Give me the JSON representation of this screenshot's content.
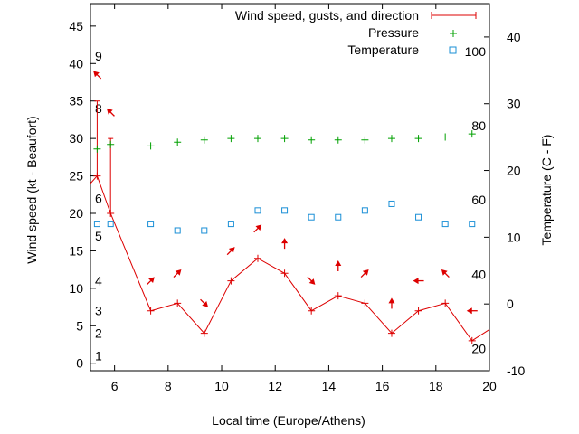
{
  "chart_data": {
    "type": "line",
    "xlabel": "Local time (Europe/Athens)",
    "ylabel": "Wind speed (kt - Beaufort)",
    "y2label": "Temperature (C - F)",
    "xlim": [
      5.1,
      20
    ],
    "ylim": [
      -1,
      48
    ],
    "y2lim": [
      -10,
      45
    ],
    "x_ticks": [
      6,
      8,
      10,
      12,
      14,
      16,
      18,
      20
    ],
    "y_ticks": [
      0,
      5,
      10,
      15,
      20,
      25,
      30,
      35,
      40,
      45
    ],
    "y2_ticks": [
      -10,
      0,
      10,
      20,
      30,
      40
    ],
    "beaufort_labels": [
      {
        "text": "1",
        "kt": 1
      },
      {
        "text": "2",
        "kt": 4
      },
      {
        "text": "3",
        "kt": 7
      },
      {
        "text": "4",
        "kt": 11
      },
      {
        "text": "5",
        "kt": 17
      },
      {
        "text": "6",
        "kt": 22
      },
      {
        "text": "8",
        "kt": 34
      },
      {
        "text": "9",
        "kt": 41
      }
    ],
    "fahrenheit_labels": [
      {
        "text": "20",
        "c": -6.7
      },
      {
        "text": "40",
        "c": 4.4
      },
      {
        "text": "60",
        "c": 15.6
      },
      {
        "text": "80",
        "c": 26.7
      },
      {
        "text": "100",
        "c": 37.8
      }
    ],
    "legend": {
      "position": "top-right",
      "entries": [
        "Wind speed, gusts, and direction",
        "Pressure",
        "Temperature"
      ]
    },
    "colors": {
      "wind": "#dd0000",
      "pressure": "#00a000",
      "temperature": "#1a8fd6",
      "axis": "#000000"
    },
    "series": [
      {
        "name": "Wind speed, gusts, and direction",
        "x": [
          5.1,
          5.35,
          5.85,
          7.35,
          8.35,
          9.35,
          10.35,
          11.35,
          12.35,
          13.35,
          14.35,
          15.35,
          16.35,
          17.35,
          18.35,
          19.35,
          20
        ],
        "values": [
          24,
          25,
          20,
          7,
          8,
          4,
          11,
          14,
          12,
          7,
          9,
          8,
          4,
          7,
          8,
          3,
          4.5
        ]
      },
      {
        "name": "Gusts",
        "x": [
          5.35,
          5.85
        ],
        "low": [
          25,
          20
        ],
        "high": [
          35,
          30
        ]
      },
      {
        "name": "Pressure",
        "x": [
          5.35,
          5.85,
          7.35,
          8.35,
          9.35,
          10.35,
          11.35,
          12.35,
          13.35,
          14.35,
          15.35,
          16.35,
          17.35,
          18.35,
          19.35
        ],
        "values": [
          28.6,
          29.2,
          29.0,
          29.5,
          29.8,
          30.0,
          30.0,
          30.0,
          29.8,
          29.8,
          29.8,
          30.0,
          30.0,
          30.2,
          30.6
        ]
      },
      {
        "name": "Temperature",
        "x": [
          5.35,
          5.85,
          7.35,
          8.35,
          9.35,
          10.35,
          11.35,
          12.35,
          13.35,
          14.35,
          15.35,
          16.35,
          17.35,
          18.35,
          19.35
        ],
        "values": [
          12,
          12,
          12,
          11,
          11,
          12,
          14,
          14,
          13,
          13,
          14,
          15,
          13,
          12,
          12
        ]
      }
    ],
    "wind_arrows": [
      {
        "x": 5.35,
        "kt": 38.5,
        "dir": "up-left"
      },
      {
        "x": 5.85,
        "kt": 33.5,
        "dir": "up-left"
      },
      {
        "x": 7.35,
        "kt": 11,
        "dir": "up-right"
      },
      {
        "x": 8.35,
        "kt": 12,
        "dir": "up-right"
      },
      {
        "x": 9.35,
        "kt": 8,
        "dir": "down-right"
      },
      {
        "x": 10.35,
        "kt": 15,
        "dir": "up-right"
      },
      {
        "x": 11.35,
        "kt": 18,
        "dir": "up-right"
      },
      {
        "x": 12.35,
        "kt": 16,
        "dir": "up"
      },
      {
        "x": 13.35,
        "kt": 11,
        "dir": "down-right"
      },
      {
        "x": 14.35,
        "kt": 13,
        "dir": "up"
      },
      {
        "x": 15.35,
        "kt": 12,
        "dir": "up-right"
      },
      {
        "x": 16.35,
        "kt": 8,
        "dir": "up"
      },
      {
        "x": 17.35,
        "kt": 11,
        "dir": "left"
      },
      {
        "x": 18.35,
        "kt": 12,
        "dir": "up-left"
      },
      {
        "x": 19.35,
        "kt": 7,
        "dir": "left"
      }
    ]
  }
}
